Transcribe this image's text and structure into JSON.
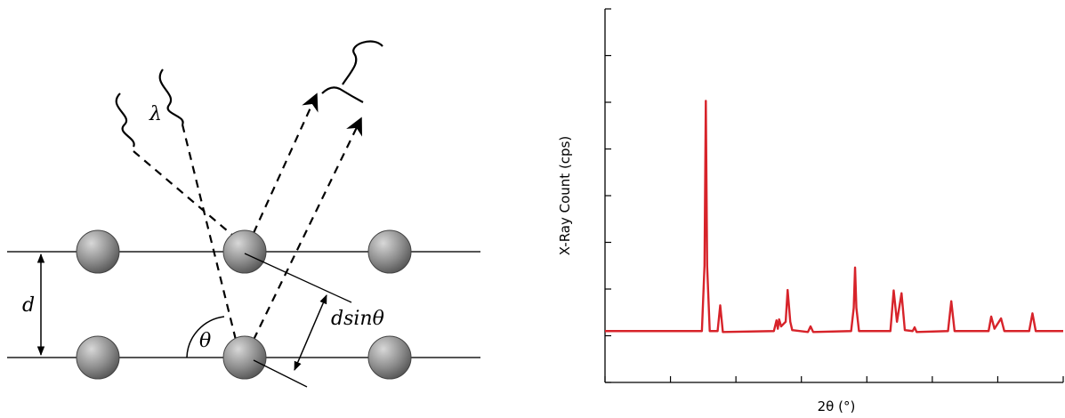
{
  "diagram": {
    "labels": {
      "wavelength": "λ",
      "spacing": "d",
      "angle": "θ",
      "path_difference": "dsinθ"
    }
  },
  "chart_data": {
    "type": "line",
    "x_label": "2θ (°)",
    "y_label": "X-Ray Count (cps)",
    "xlim": [
      0,
      7
    ],
    "ylim": [
      0,
      8
    ],
    "xticks": [
      0,
      1,
      2,
      3,
      4,
      5,
      6,
      7
    ],
    "yticks": [
      0,
      1,
      2,
      3,
      4,
      5,
      6,
      7,
      8
    ],
    "x": [
      0,
      1.48,
      1.52,
      1.54,
      1.56,
      1.6,
      1.72,
      1.76,
      1.8,
      2.58,
      2.62,
      2.64,
      2.66,
      2.69,
      2.76,
      2.79,
      2.83,
      2.86,
      3.1,
      3.14,
      3.18,
      3.76,
      3.8,
      3.82,
      3.84,
      3.88,
      4.36,
      4.41,
      4.46,
      4.53,
      4.58,
      4.7,
      4.73,
      4.76,
      5.24,
      5.29,
      5.34,
      5.86,
      5.9,
      5.95,
      6.05,
      6.1,
      6.48,
      6.53,
      6.58,
      7.0
    ],
    "series": [
      {
        "color": "#d7232a",
        "values": [
          1.1,
          1.1,
          2.5,
          6.03,
          2.5,
          1.1,
          1.1,
          1.65,
          1.08,
          1.1,
          1.33,
          1.15,
          1.35,
          1.2,
          1.3,
          1.98,
          1.3,
          1.12,
          1.08,
          1.2,
          1.08,
          1.1,
          1.6,
          2.46,
          1.6,
          1.1,
          1.1,
          1.97,
          1.3,
          1.91,
          1.12,
          1.1,
          1.18,
          1.08,
          1.1,
          1.74,
          1.1,
          1.1,
          1.41,
          1.15,
          1.37,
          1.1,
          1.1,
          1.48,
          1.1,
          1.1
        ]
      }
    ]
  }
}
